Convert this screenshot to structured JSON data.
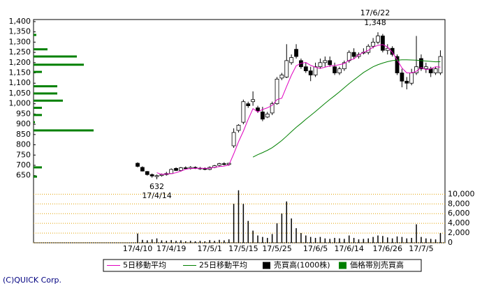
{
  "chart_data": {
    "type": "candlestick",
    "categories": [
      "17/4/10",
      null,
      null,
      null,
      null,
      null,
      null,
      "17/4/19",
      null,
      null,
      null,
      null,
      null,
      null,
      null,
      "17/5/1",
      null,
      null,
      null,
      null,
      null,
      null,
      "17/5/15",
      null,
      null,
      null,
      null,
      null,
      null,
      "17/5/25",
      null,
      null,
      null,
      null,
      null,
      null,
      null,
      "17/6/5",
      null,
      null,
      null,
      null,
      null,
      null,
      "17/6/14",
      null,
      null,
      null,
      null,
      null,
      null,
      null,
      "17/6/26",
      null,
      null,
      null,
      null,
      null,
      null,
      "17/7/5",
      null,
      null,
      null,
      null
    ],
    "open": [
      710,
      690,
      670,
      655,
      645,
      650,
      655,
      660,
      685,
      675,
      688,
      684,
      690,
      686,
      684,
      680,
      690,
      700,
      708,
      704,
      795,
      870,
      910,
      1000,
      1010,
      980,
      960,
      935,
      955,
      1000,
      1125,
      1130,
      1200,
      1265,
      1210,
      1180,
      1160,
      1140,
      1180,
      1200,
      1210,
      1180,
      1150,
      1170,
      1210,
      1250,
      1230,
      1250,
      1250,
      1280,
      1300,
      1330,
      1260,
      1270,
      1230,
      1150,
      1110,
      1100,
      1150,
      1220,
      1170,
      1170,
      1150,
      1150
    ],
    "high": [
      715,
      695,
      672,
      660,
      655,
      660,
      668,
      685,
      690,
      692,
      695,
      696,
      695,
      692,
      690,
      695,
      702,
      712,
      715,
      712,
      880,
      900,
      1020,
      1010,
      1060,
      990,
      985,
      960,
      1010,
      1130,
      1150,
      1290,
      1240,
      1290,
      1220,
      1200,
      1180,
      1200,
      1220,
      1230,
      1230,
      1200,
      1180,
      1210,
      1260,
      1270,
      1250,
      1270,
      1290,
      1320,
      1348,
      1340,
      1290,
      1280,
      1240,
      1170,
      1130,
      1170,
      1330,
      1240,
      1200,
      1180,
      1180,
      1260
    ],
    "low": [
      690,
      670,
      650,
      640,
      632,
      645,
      650,
      658,
      672,
      670,
      680,
      680,
      682,
      678,
      676,
      676,
      686,
      695,
      700,
      698,
      785,
      860,
      900,
      980,
      990,
      955,
      915,
      930,
      945,
      995,
      1115,
      1125,
      1190,
      1220,
      1170,
      1150,
      1110,
      1130,
      1170,
      1180,
      1180,
      1140,
      1140,
      1160,
      1200,
      1220,
      1220,
      1240,
      1240,
      1270,
      1290,
      1250,
      1240,
      1230,
      1140,
      1080,
      1070,
      1090,
      1140,
      1160,
      1150,
      1130,
      1140,
      1140
    ],
    "close": [
      695,
      672,
      655,
      648,
      650,
      655,
      660,
      680,
      675,
      688,
      684,
      690,
      686,
      684,
      680,
      690,
      698,
      708,
      704,
      710,
      860,
      895,
      1010,
      990,
      1020,
      965,
      925,
      950,
      1000,
      1120,
      1140,
      1210,
      1225,
      1230,
      1180,
      1160,
      1140,
      1180,
      1200,
      1210,
      1190,
      1150,
      1170,
      1200,
      1250,
      1230,
      1240,
      1250,
      1280,
      1300,
      1330,
      1260,
      1270,
      1240,
      1150,
      1110,
      1100,
      1150,
      1180,
      1170,
      1180,
      1150,
      1170,
      1230
    ],
    "ylim": [
      615,
      1410
    ],
    "yticks": [
      650,
      700,
      750,
      800,
      850,
      900,
      950,
      {
        "value": 1000,
        "label": "1,000"
      },
      {
        "value": 1050,
        "label": "1,050"
      },
      {
        "value": 1100,
        "label": "1,100"
      },
      {
        "value": 1150,
        "label": "1,150"
      },
      {
        "value": 1200,
        "label": "1,200"
      },
      {
        "value": 1250,
        "label": "1,250"
      },
      {
        "value": 1300,
        "label": "1,300"
      },
      {
        "value": 1350,
        "label": "1,350"
      },
      {
        "value": 1400,
        "label": "1,400"
      }
    ],
    "series": [
      {
        "name": "5日移動平均",
        "color": "#e000c0",
        "values": [
          null,
          null,
          null,
          null,
          664,
          656,
          658,
          659,
          664,
          672,
          681,
          685,
          685,
          686,
          685,
          686,
          690,
          694,
          696,
          702,
          756,
          815,
          866,
          924,
          976,
          960,
          972,
          980,
          992,
          1020,
          1027,
          1084,
          1139,
          1185,
          1197,
          1201,
          1187,
          1178,
          1172,
          1178,
          1184,
          1186,
          1190,
          1196,
          1212,
          1218,
          1238,
          1250,
          1260,
          1276,
          1284,
          1288,
          1276,
          1250,
          1214,
          1174,
          1150,
          1150,
          1158,
          1176,
          1166,
          1170,
          1180,
          1178
        ]
      },
      {
        "name": "25日移動平均",
        "color": "#008000",
        "values": [
          null,
          null,
          null,
          null,
          null,
          null,
          null,
          null,
          null,
          null,
          null,
          null,
          null,
          null,
          null,
          null,
          null,
          null,
          null,
          null,
          null,
          null,
          null,
          null,
          740,
          752,
          762,
          773,
          786,
          803,
          821,
          842,
          864,
          885,
          904,
          924,
          943,
          962,
          982,
          1002,
          1021,
          1039,
          1058,
          1078,
          1098,
          1116,
          1134,
          1152,
          1166,
          1180,
          1190,
          1198,
          1205,
          1210,
          1212,
          1214,
          1214,
          1213,
          1212,
          1210,
          1208,
          1206,
          1204,
          1205
        ]
      }
    ],
    "volume": {
      "name": "売買高(1000株)",
      "color": "#000000",
      "values": [
        1900,
        600,
        500,
        700,
        900,
        500,
        400,
        500,
        400,
        500,
        300,
        400,
        300,
        400,
        300,
        500,
        400,
        600,
        500,
        700,
        8000,
        10800,
        8000,
        4500,
        2500,
        1500,
        1200,
        1000,
        1800,
        4000,
        6000,
        8500,
        5000,
        3000,
        2000,
        1500,
        1200,
        1000,
        1200,
        900,
        800,
        1000,
        900,
        800,
        1500,
        1000,
        700,
        800,
        900,
        1200,
        1500,
        1400,
        1100,
        900,
        1300,
        1200,
        900,
        1000,
        3800,
        1200,
        900,
        800,
        700,
        2000
      ],
      "ylim": [
        0,
        10850
      ],
      "yticks": [
        0,
        {
          "value": 2000,
          "label": "2,000"
        },
        {
          "value": 4000,
          "label": "4,000"
        },
        {
          "value": 6000,
          "label": "6,000"
        },
        {
          "value": 8000,
          "label": "8,000"
        },
        {
          "value": 10000,
          "label": "10,000"
        }
      ]
    },
    "price_band": {
      "name": "価格帯別売買高",
      "color": "#008000",
      "prices": [
        1335,
        1265,
        1230,
        1190,
        1155,
        1085,
        1050,
        1015,
        980,
        945,
        910,
        870,
        690,
        645
      ],
      "values": [
        4,
        20,
        62,
        72,
        12,
        34,
        34,
        42,
        12,
        12,
        2,
        86,
        12,
        5
      ]
    },
    "high_annotation": {
      "date": "17/6/22",
      "value": 1348,
      "label": "1,348"
    },
    "low_annotation": {
      "date": "17/4/14",
      "value": 632,
      "label": "632"
    },
    "copyright": "(C)QUICK Corp."
  }
}
